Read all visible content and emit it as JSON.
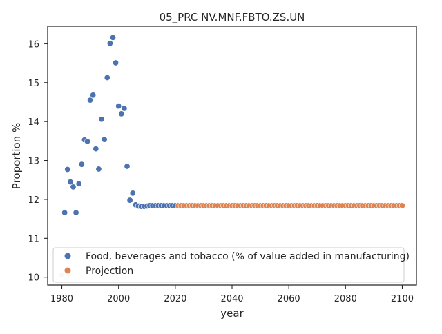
{
  "chart_data": {
    "type": "scatter",
    "title": "05_PRC NV.MNF.FBTO.ZS.UN",
    "xlabel": "year",
    "ylabel": "Proportion %",
    "xlim": [
      1975,
      2105
    ],
    "ylim": [
      9.8,
      16.45
    ],
    "x_ticks": [
      1980,
      2000,
      2020,
      2040,
      2060,
      2080,
      2100
    ],
    "y_ticks": [
      10,
      11,
      12,
      13,
      14,
      15,
      16
    ],
    "grid": false,
    "legend_position": "lower-left",
    "series": [
      {
        "name": "Food, beverages and tobacco (% of value added in manufacturing)",
        "color": "#4c72b0",
        "points": [
          [
            1981,
            11.66
          ],
          [
            1982,
            12.77
          ],
          [
            1983,
            12.45
          ],
          [
            1984,
            12.32
          ],
          [
            1985,
            11.66
          ],
          [
            1986,
            12.4
          ],
          [
            1987,
            12.9
          ],
          [
            1988,
            13.53
          ],
          [
            1989,
            13.49
          ],
          [
            1990,
            14.55
          ],
          [
            1991,
            14.68
          ],
          [
            1992,
            13.3
          ],
          [
            1993,
            12.78
          ],
          [
            1994,
            14.06
          ],
          [
            1995,
            13.54
          ],
          [
            1996,
            15.13
          ],
          [
            1997,
            16.01
          ],
          [
            1998,
            16.16
          ],
          [
            1999,
            15.51
          ],
          [
            2000,
            14.4
          ],
          [
            2001,
            14.2
          ],
          [
            2002,
            14.34
          ],
          [
            2003,
            12.85
          ],
          [
            2004,
            11.98
          ],
          [
            2005,
            12.16
          ],
          [
            2006,
            11.86
          ],
          [
            2007,
            11.83
          ],
          [
            2008,
            11.82
          ],
          [
            2009,
            11.82
          ],
          [
            2010,
            11.83
          ],
          [
            2011,
            11.84
          ],
          [
            2012,
            11.84
          ],
          [
            2013,
            11.84
          ],
          [
            2014,
            11.84
          ],
          [
            2015,
            11.84
          ],
          [
            2016,
            11.84
          ],
          [
            2017,
            11.84
          ],
          [
            2018,
            11.84
          ],
          [
            2019,
            11.84
          ],
          [
            2020,
            11.84
          ]
        ]
      },
      {
        "name": "Projection",
        "color": "#dd8452",
        "x_start": 2021,
        "x_end": 2100,
        "y_constant": 11.84
      }
    ],
    "outlier_points": [
      {
        "x": 1980,
        "y": 10.06,
        "color": "#d0d0d0"
      }
    ]
  }
}
